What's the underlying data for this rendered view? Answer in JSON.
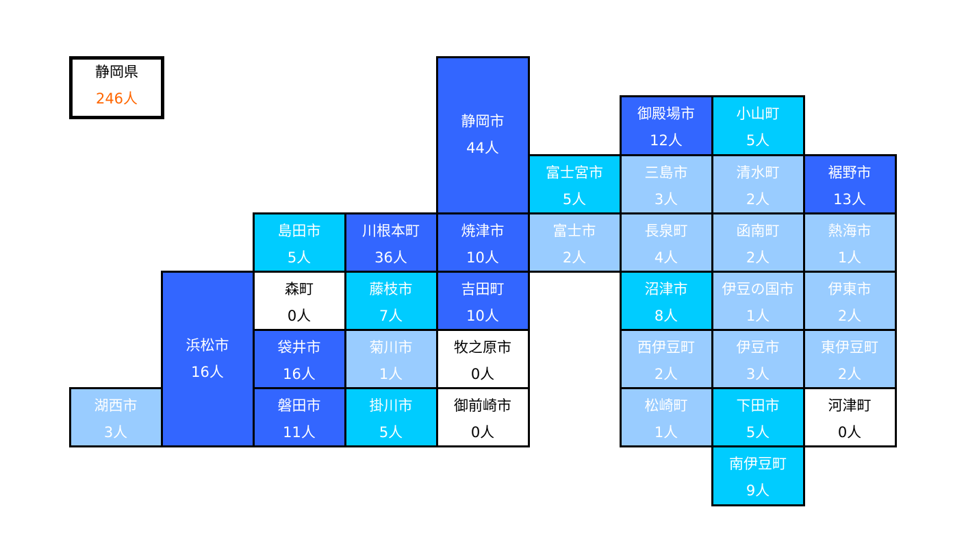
{
  "prefecture": {
    "name": "静岡県",
    "count": "246人",
    "count_color": "#ff6600"
  },
  "colors": {
    "high": "#3366ff",
    "mid": "#00ccff",
    "low": "#99ccff",
    "zero": "#ffffff"
  },
  "municipalities": [
    {
      "id": "shizuoka-shi",
      "name": "静岡市",
      "count": "44人",
      "level": "high"
    },
    {
      "id": "gotemba-shi",
      "name": "御殿場市",
      "count": "12人",
      "level": "high"
    },
    {
      "id": "oyama-cho",
      "name": "小山町",
      "count": "5人",
      "level": "mid"
    },
    {
      "id": "fujinomiya-shi",
      "name": "富士宮市",
      "count": "5人",
      "level": "mid"
    },
    {
      "id": "mishima-shi",
      "name": "三島市",
      "count": "3人",
      "level": "low"
    },
    {
      "id": "shimizu-cho",
      "name": "清水町",
      "count": "2人",
      "level": "low"
    },
    {
      "id": "susono-shi",
      "name": "裾野市",
      "count": "13人",
      "level": "high"
    },
    {
      "id": "shimada-shi",
      "name": "島田市",
      "count": "5人",
      "level": "mid"
    },
    {
      "id": "kawanehon-cho",
      "name": "川根本町",
      "count": "36人",
      "level": "high"
    },
    {
      "id": "yaizu-shi",
      "name": "焼津市",
      "count": "10人",
      "level": "high"
    },
    {
      "id": "fuji-shi",
      "name": "富士市",
      "count": "2人",
      "level": "low"
    },
    {
      "id": "nagaizumi-cho",
      "name": "長泉町",
      "count": "4人",
      "level": "low"
    },
    {
      "id": "kannami-cho",
      "name": "函南町",
      "count": "2人",
      "level": "low"
    },
    {
      "id": "atami-shi",
      "name": "熱海市",
      "count": "1人",
      "level": "low"
    },
    {
      "id": "hamamatsu-shi",
      "name": "浜松市",
      "count": "16人",
      "level": "high"
    },
    {
      "id": "mori-machi",
      "name": "森町",
      "count": "0人",
      "level": "zero"
    },
    {
      "id": "fujieda-shi",
      "name": "藤枝市",
      "count": "7人",
      "level": "mid"
    },
    {
      "id": "yoshida-cho",
      "name": "吉田町",
      "count": "10人",
      "level": "high"
    },
    {
      "id": "numazu-shi",
      "name": "沼津市",
      "count": "8人",
      "level": "mid"
    },
    {
      "id": "izunokuni-shi",
      "name": "伊豆の国市",
      "count": "1人",
      "level": "low"
    },
    {
      "id": "ito-shi",
      "name": "伊東市",
      "count": "2人",
      "level": "low"
    },
    {
      "id": "fukuroi-shi",
      "name": "袋井市",
      "count": "16人",
      "level": "high"
    },
    {
      "id": "kikugawa-shi",
      "name": "菊川市",
      "count": "1人",
      "level": "low"
    },
    {
      "id": "makinohara-shi",
      "name": "牧之原市",
      "count": "0人",
      "level": "zero"
    },
    {
      "id": "nishiizu-cho",
      "name": "西伊豆町",
      "count": "2人",
      "level": "low"
    },
    {
      "id": "izu-shi",
      "name": "伊豆市",
      "count": "3人",
      "level": "low"
    },
    {
      "id": "higashiizu-cho",
      "name": "東伊豆町",
      "count": "2人",
      "level": "low"
    },
    {
      "id": "kosai-shi",
      "name": "湖西市",
      "count": "3人",
      "level": "low"
    },
    {
      "id": "iwata-shi",
      "name": "磐田市",
      "count": "11人",
      "level": "high"
    },
    {
      "id": "kakegawa-shi",
      "name": "掛川市",
      "count": "5人",
      "level": "mid"
    },
    {
      "id": "omaezaki-shi",
      "name": "御前崎市",
      "count": "0人",
      "level": "zero"
    },
    {
      "id": "matsuzaki-cho",
      "name": "松崎町",
      "count": "1人",
      "level": "low"
    },
    {
      "id": "shimoda-shi",
      "name": "下田市",
      "count": "5人",
      "level": "mid"
    },
    {
      "id": "kawazu-cho",
      "name": "河津町",
      "count": "0人",
      "level": "zero"
    },
    {
      "id": "minamiizu-cho",
      "name": "南伊豆町",
      "count": "9人",
      "level": "mid"
    }
  ]
}
